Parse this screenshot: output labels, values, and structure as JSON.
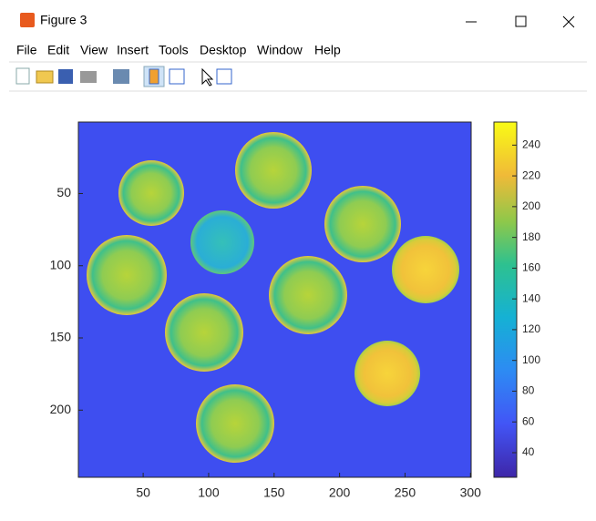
{
  "window": {
    "title": "Figure 3"
  },
  "menu": [
    "File",
    "Edit",
    "View",
    "Insert",
    "Tools",
    "Desktop",
    "Window",
    "Help"
  ],
  "chart_data": {
    "type": "image",
    "xlim": [
      0.5,
      300.5
    ],
    "xticks": [
      50,
      100,
      150,
      200,
      250,
      300
    ],
    "ylim": [
      0.5,
      246.5
    ],
    "yticks": [
      50,
      100,
      150,
      200
    ],
    "colorbar": {
      "lim": [
        24,
        255
      ],
      "ticks": [
        40,
        60,
        80,
        100,
        120,
        140,
        160,
        180,
        200,
        220,
        240
      ]
    }
  }
}
